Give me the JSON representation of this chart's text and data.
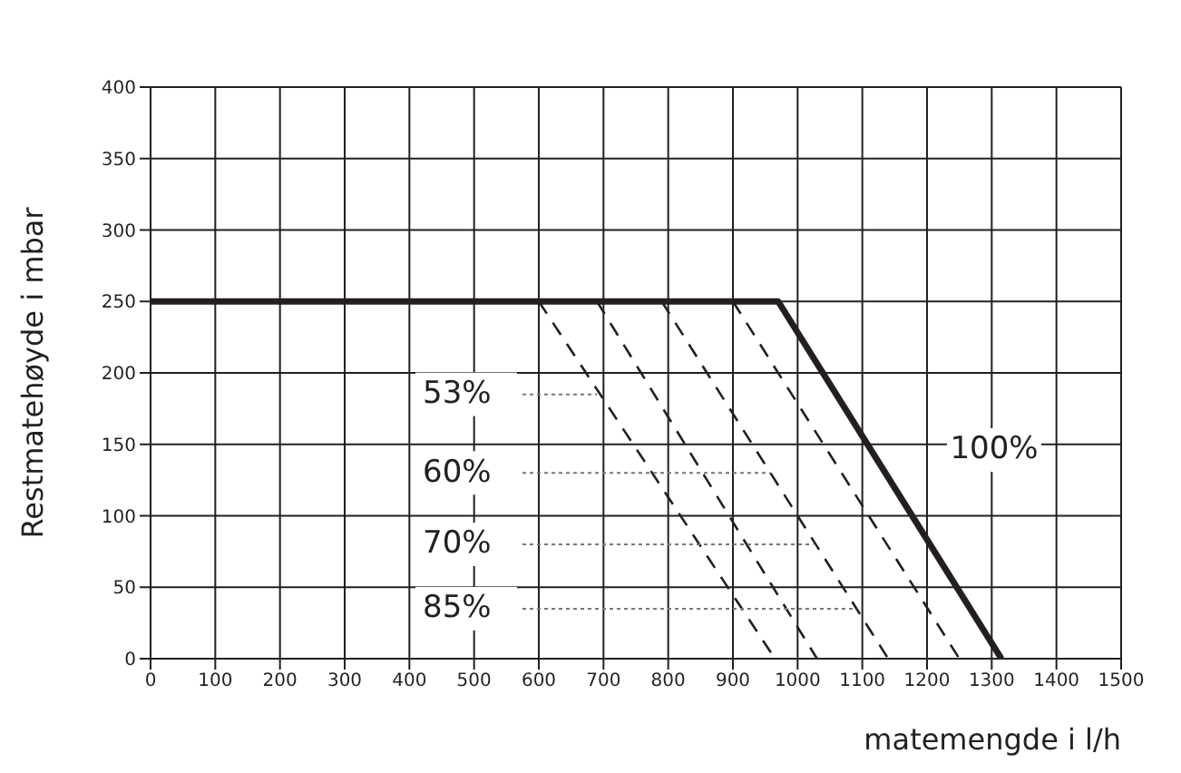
{
  "chart_data": {
    "type": "line",
    "xlabel": "matemengde i l/h",
    "ylabel": "Restmatehøyde i mbar",
    "xlim": [
      0,
      1500
    ],
    "xticks": [
      0,
      100,
      200,
      300,
      400,
      500,
      600,
      700,
      800,
      900,
      1000,
      1100,
      1200,
      1300,
      1400,
      1500
    ],
    "ylim": [
      0,
      400
    ],
    "yticks": [
      0,
      50,
      100,
      150,
      200,
      250,
      300,
      350,
      400
    ],
    "grid": true,
    "marker": "none",
    "series": [
      {
        "x": [
          0,
          970,
          1315
        ],
        "values": [
          250,
          250,
          0
        ],
        "color": "#231f20",
        "line_style": "solid"
      },
      {
        "x": [
          600,
          965
        ],
        "values": [
          250,
          0
        ],
        "color": "#231f20",
        "line_style": "dashed"
      },
      {
        "x": [
          690,
          1030
        ],
        "values": [
          250,
          0
        ],
        "color": "#231f20",
        "line_style": "dashed"
      },
      {
        "x": [
          790,
          1140
        ],
        "values": [
          250,
          0
        ],
        "color": "#231f20",
        "line_style": "dashed"
      },
      {
        "x": [
          900,
          1250
        ],
        "values": [
          250,
          0
        ],
        "color": "#231f20",
        "line_style": "dashed"
      }
    ],
    "annotations": [
      {
        "text": "53%",
        "x": 690,
        "y": 185
      },
      {
        "text": "60%",
        "x": 958,
        "y": 130
      },
      {
        "text": "70%",
        "x": 1024,
        "y": 80
      },
      {
        "text": "85%",
        "x": 1091,
        "y": 35
      },
      "100%"
    ]
  }
}
